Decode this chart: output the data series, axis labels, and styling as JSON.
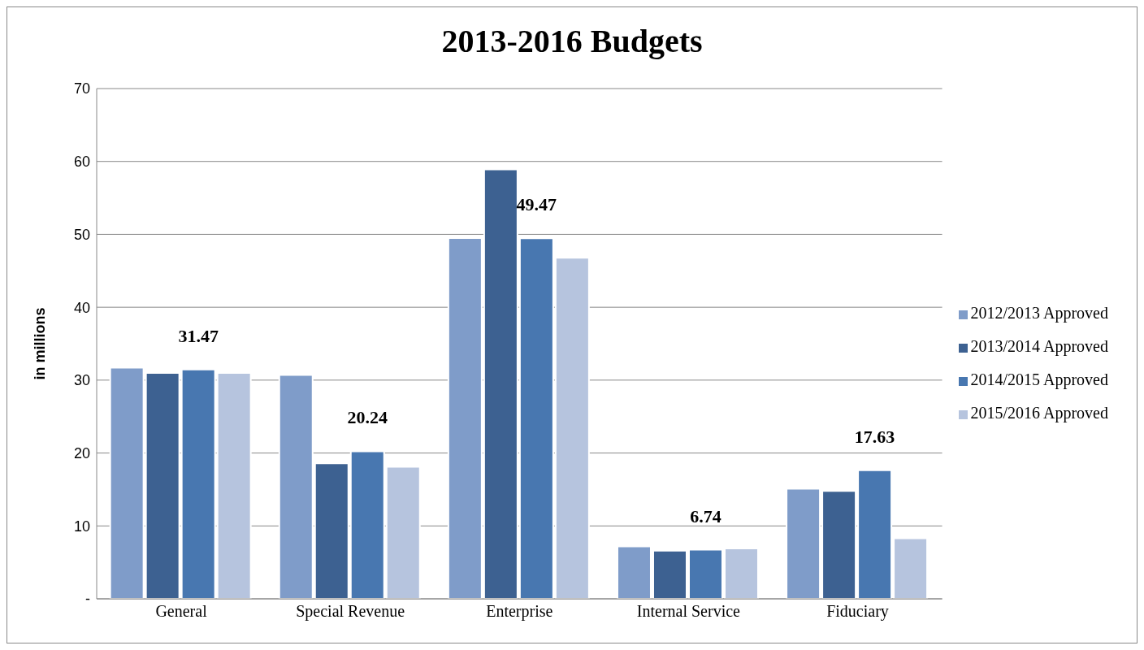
{
  "chart_data": {
    "type": "bar",
    "title": "2013-2016 Budgets",
    "ylabel": "in millions",
    "categories": [
      "General",
      "Special Revenue",
      "Enterprise",
      "Internal Service",
      "Fiduciary"
    ],
    "series": [
      {
        "name": "2012/2013 Approved",
        "color": "#7f9cc9",
        "values": [
          31.7,
          30.7,
          49.5,
          7.2,
          15.1
        ]
      },
      {
        "name": "2013/2014 Approved",
        "color": "#3d6191",
        "values": [
          31.0,
          18.6,
          58.9,
          6.6,
          14.8
        ]
      },
      {
        "name": "2014/2015 Approved",
        "color": "#4877b0",
        "values": [
          31.47,
          20.24,
          49.47,
          6.74,
          17.63
        ],
        "value_labels": [
          "31.47",
          "20.24",
          "49.47",
          "6.74",
          "17.63"
        ]
      },
      {
        "name": "2015/2016 Approved",
        "color": "#b6c4de",
        "values": [
          31.0,
          18.1,
          46.8,
          6.9,
          8.3
        ]
      }
    ],
    "ylim": [
      0,
      70
    ],
    "yticks": [
      {
        "value": 0,
        "label": "-"
      },
      10,
      20,
      30,
      40,
      50,
      60,
      70
    ],
    "grid": "y",
    "legend": "right"
  }
}
